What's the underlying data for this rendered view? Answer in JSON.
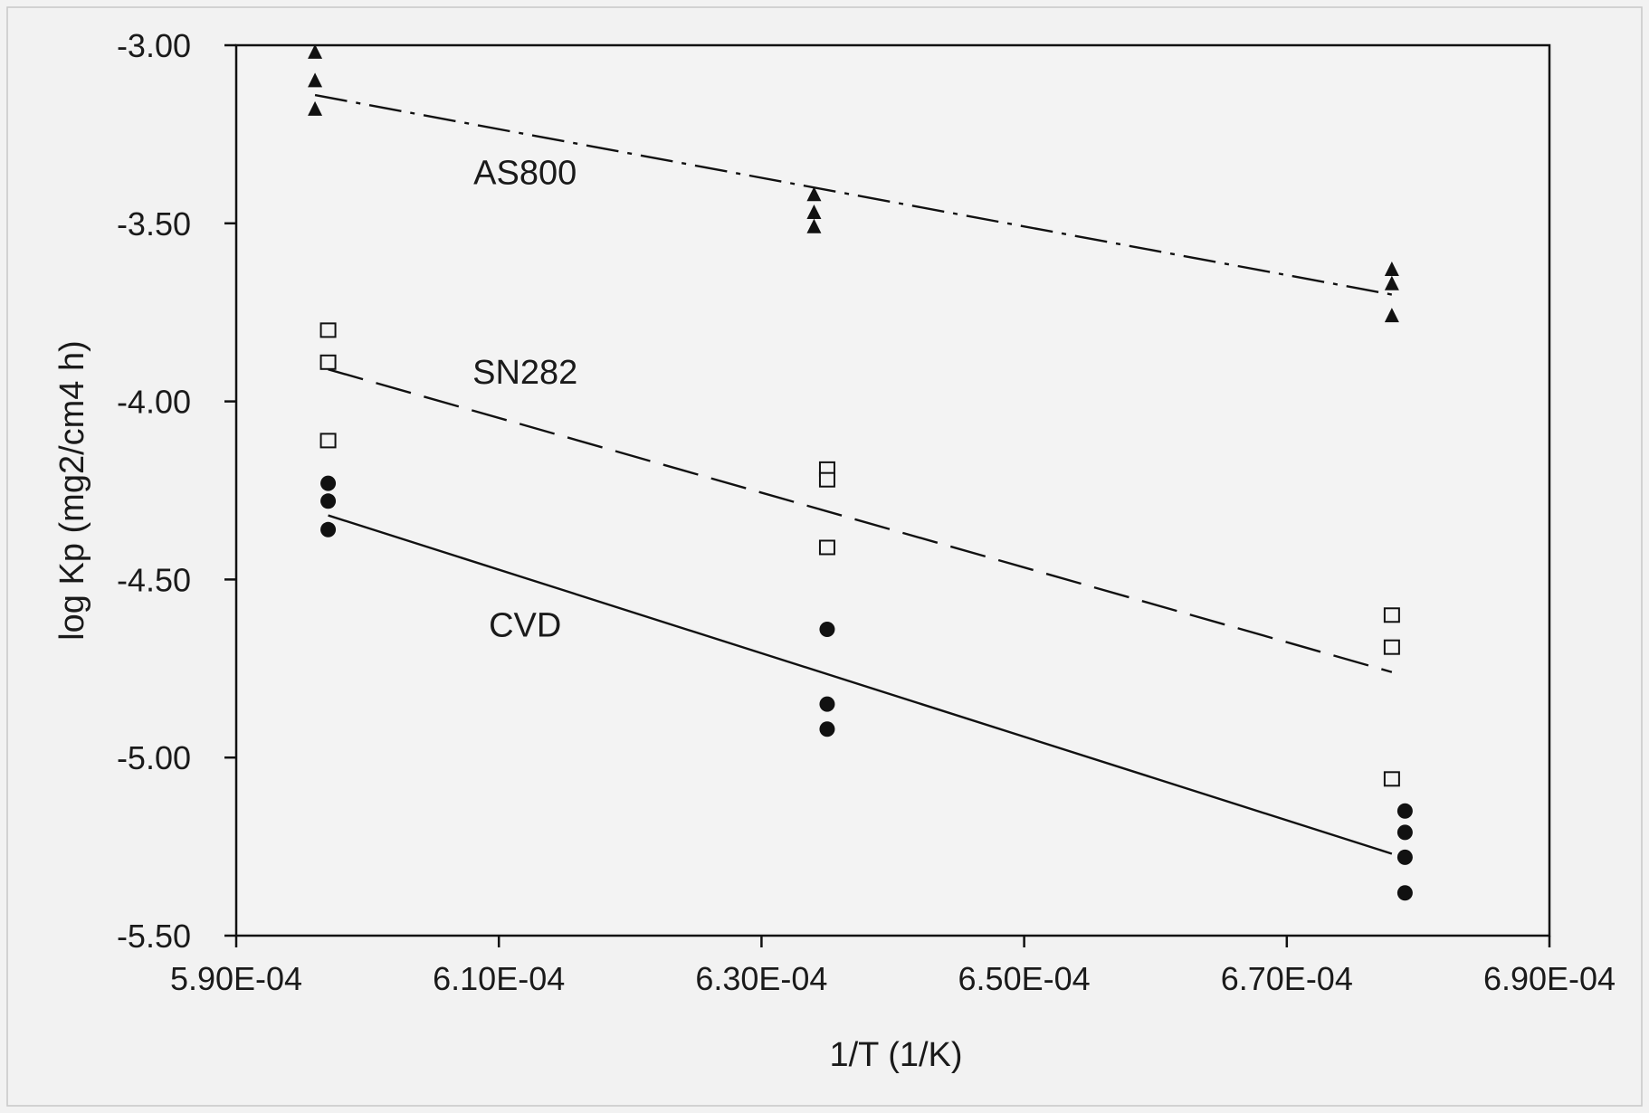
{
  "chart_data": {
    "type": "scatter",
    "title": "",
    "xlabel": "1/T (1/K)",
    "ylabel": "log Kp (mg2/cm4 h)",
    "xlim": [
      0.00059,
      0.00069
    ],
    "ylim": [
      -5.5,
      -3.0
    ],
    "x_ticks": [
      0.00059,
      0.00061,
      0.00063,
      0.00065,
      0.00067,
      0.00069
    ],
    "x_tick_labels": [
      "5.90E-04",
      "6.10E-04",
      "6.30E-04",
      "6.50E-04",
      "6.70E-04",
      "6.90E-04"
    ],
    "y_ticks": [
      -3.0,
      -3.5,
      -4.0,
      -4.5,
      -5.0,
      -5.5
    ],
    "y_tick_labels": [
      "-3.00",
      "-3.50",
      "-4.00",
      "-4.50",
      "-5.00",
      "-5.50"
    ],
    "grid": false,
    "legend": "none",
    "series": [
      {
        "name": "AS800",
        "marker": "filled-triangle",
        "line_style": "dash-dot",
        "color": "#111111",
        "label_at": [
          0.000612,
          -3.39
        ],
        "points": [
          [
            0.000596,
            -3.02
          ],
          [
            0.000596,
            -3.1
          ],
          [
            0.000596,
            -3.18
          ],
          [
            0.000634,
            -3.42
          ],
          [
            0.000634,
            -3.47
          ],
          [
            0.000634,
            -3.51
          ],
          [
            0.000678,
            -3.63
          ],
          [
            0.000678,
            -3.67
          ],
          [
            0.000678,
            -3.76
          ]
        ],
        "fit": [
          [
            0.000596,
            -3.14
          ],
          [
            0.000678,
            -3.7
          ]
        ]
      },
      {
        "name": "SN282",
        "marker": "open-square",
        "line_style": "dashed",
        "color": "#111111",
        "label_at": [
          0.000612,
          -3.95
        ],
        "points": [
          [
            0.000597,
            -3.8
          ],
          [
            0.000597,
            -3.89
          ],
          [
            0.000597,
            -4.11
          ],
          [
            0.000635,
            -4.19
          ],
          [
            0.000635,
            -4.22
          ],
          [
            0.000635,
            -4.41
          ],
          [
            0.000678,
            -4.6
          ],
          [
            0.000678,
            -4.69
          ],
          [
            0.000678,
            -5.06
          ]
        ],
        "fit": [
          [
            0.000597,
            -3.91
          ],
          [
            0.000678,
            -4.76
          ]
        ]
      },
      {
        "name": "CVD",
        "marker": "filled-circle",
        "line_style": "solid",
        "color": "#111111",
        "label_at": [
          0.000612,
          -4.66
        ],
        "points": [
          [
            0.000597,
            -4.23
          ],
          [
            0.000597,
            -4.28
          ],
          [
            0.000597,
            -4.36
          ],
          [
            0.000635,
            -4.64
          ],
          [
            0.000635,
            -4.85
          ],
          [
            0.000635,
            -4.92
          ],
          [
            0.000679,
            -5.15
          ],
          [
            0.000679,
            -5.21
          ],
          [
            0.000679,
            -5.28
          ],
          [
            0.000679,
            -5.38
          ]
        ],
        "fit": [
          [
            0.000597,
            -4.32
          ],
          [
            0.000678,
            -5.27
          ]
        ]
      }
    ]
  }
}
